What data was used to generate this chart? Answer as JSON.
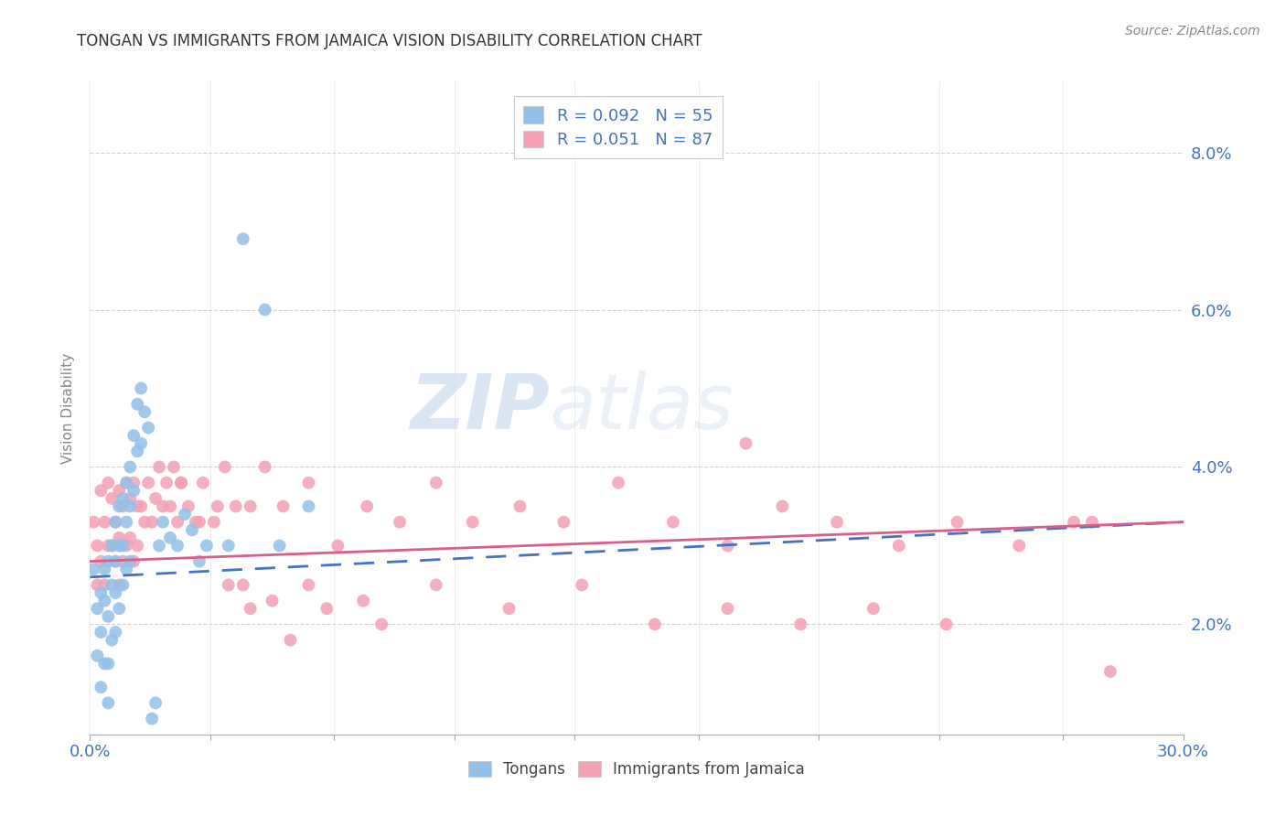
{
  "title": "TONGAN VS IMMIGRANTS FROM JAMAICA VISION DISABILITY CORRELATION CHART",
  "source": "Source: ZipAtlas.com",
  "ylabel": "Vision Disability",
  "xlim": [
    0.0,
    0.3
  ],
  "ylim": [
    0.006,
    0.089
  ],
  "ytick_labels": [
    "2.0%",
    "4.0%",
    "6.0%",
    "8.0%"
  ],
  "ytick_vals": [
    0.02,
    0.04,
    0.06,
    0.08
  ],
  "xtick_vals": [
    0.0,
    0.033,
    0.067,
    0.1,
    0.133,
    0.167,
    0.2,
    0.233,
    0.267,
    0.3
  ],
  "legend_r1": "R = 0.092   N = 55",
  "legend_r2": "R = 0.051   N = 87",
  "color_blue": "#92C0E8",
  "color_pink": "#F4A0B5",
  "color_text_blue": "#4472C4",
  "color_text_pink": "#D95F8A",
  "watermark_zip": "ZIP",
  "watermark_atlas": "atlas",
  "tongans_x": [
    0.001,
    0.002,
    0.002,
    0.003,
    0.003,
    0.003,
    0.004,
    0.004,
    0.004,
    0.005,
    0.005,
    0.005,
    0.005,
    0.006,
    0.006,
    0.006,
    0.007,
    0.007,
    0.007,
    0.007,
    0.008,
    0.008,
    0.008,
    0.009,
    0.009,
    0.009,
    0.01,
    0.01,
    0.01,
    0.011,
    0.011,
    0.011,
    0.012,
    0.012,
    0.013,
    0.013,
    0.014,
    0.014,
    0.015,
    0.016,
    0.017,
    0.018,
    0.019,
    0.02,
    0.022,
    0.024,
    0.026,
    0.028,
    0.03,
    0.032,
    0.038,
    0.042,
    0.048,
    0.052,
    0.06
  ],
  "tongans_y": [
    0.027,
    0.022,
    0.016,
    0.024,
    0.019,
    0.012,
    0.027,
    0.023,
    0.015,
    0.028,
    0.021,
    0.015,
    0.01,
    0.03,
    0.025,
    0.018,
    0.033,
    0.028,
    0.024,
    0.019,
    0.035,
    0.03,
    0.022,
    0.036,
    0.03,
    0.025,
    0.038,
    0.033,
    0.027,
    0.04,
    0.035,
    0.028,
    0.044,
    0.037,
    0.048,
    0.042,
    0.05,
    0.043,
    0.047,
    0.045,
    0.008,
    0.01,
    0.03,
    0.033,
    0.031,
    0.03,
    0.034,
    0.032,
    0.028,
    0.03,
    0.03,
    0.069,
    0.06,
    0.03,
    0.035
  ],
  "jamaica_x": [
    0.001,
    0.002,
    0.002,
    0.003,
    0.003,
    0.004,
    0.004,
    0.005,
    0.005,
    0.006,
    0.006,
    0.007,
    0.007,
    0.008,
    0.008,
    0.008,
    0.009,
    0.009,
    0.01,
    0.01,
    0.011,
    0.011,
    0.012,
    0.012,
    0.013,
    0.013,
    0.014,
    0.015,
    0.016,
    0.017,
    0.018,
    0.019,
    0.02,
    0.021,
    0.022,
    0.023,
    0.024,
    0.025,
    0.027,
    0.029,
    0.031,
    0.034,
    0.037,
    0.04,
    0.044,
    0.048,
    0.053,
    0.06,
    0.068,
    0.076,
    0.085,
    0.095,
    0.105,
    0.118,
    0.13,
    0.145,
    0.16,
    0.175,
    0.19,
    0.205,
    0.222,
    0.238,
    0.255,
    0.27,
    0.06,
    0.075,
    0.095,
    0.115,
    0.135,
    0.155,
    0.175,
    0.195,
    0.215,
    0.235,
    0.18,
    0.035,
    0.042,
    0.05,
    0.065,
    0.08,
    0.025,
    0.03,
    0.038,
    0.044,
    0.055,
    0.28,
    0.275
  ],
  "jamaica_y": [
    0.033,
    0.03,
    0.025,
    0.037,
    0.028,
    0.033,
    0.025,
    0.038,
    0.03,
    0.036,
    0.03,
    0.033,
    0.028,
    0.037,
    0.031,
    0.025,
    0.035,
    0.028,
    0.038,
    0.03,
    0.036,
    0.031,
    0.038,
    0.028,
    0.035,
    0.03,
    0.035,
    0.033,
    0.038,
    0.033,
    0.036,
    0.04,
    0.035,
    0.038,
    0.035,
    0.04,
    0.033,
    0.038,
    0.035,
    0.033,
    0.038,
    0.033,
    0.04,
    0.035,
    0.035,
    0.04,
    0.035,
    0.038,
    0.03,
    0.035,
    0.033,
    0.038,
    0.033,
    0.035,
    0.033,
    0.038,
    0.033,
    0.03,
    0.035,
    0.033,
    0.03,
    0.033,
    0.03,
    0.033,
    0.025,
    0.023,
    0.025,
    0.022,
    0.025,
    0.02,
    0.022,
    0.02,
    0.022,
    0.02,
    0.043,
    0.035,
    0.025,
    0.023,
    0.022,
    0.02,
    0.038,
    0.033,
    0.025,
    0.022,
    0.018,
    0.014,
    0.033
  ]
}
